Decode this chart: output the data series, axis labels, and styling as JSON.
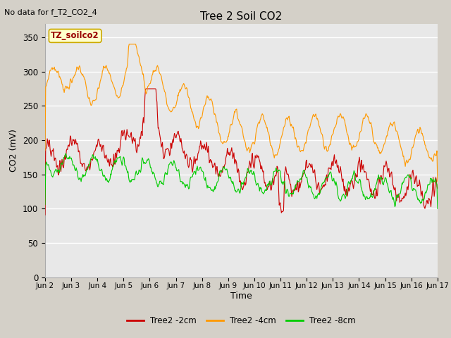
{
  "title": "Tree 2 Soil CO2",
  "subtitle": "No data for f_T2_CO2_4",
  "ylabel": "CO2 (mV)",
  "xlabel": "Time",
  "ylim": [
    0,
    370
  ],
  "yticks": [
    0,
    50,
    100,
    150,
    200,
    250,
    300,
    350
  ],
  "fig_bg": "#d4d0c8",
  "plot_bg": "#e8e8e8",
  "legend_label_box": "TZ_soilco2",
  "legend_box_facecolor": "#ffffcc",
  "legend_box_edgecolor": "#ccaa00",
  "series": [
    "Tree2 -2cm",
    "Tree2 -4cm",
    "Tree2 -8cm"
  ],
  "colors": [
    "#cc0000",
    "#ff9900",
    "#00cc00"
  ],
  "xtick_labels": [
    "Jun 2",
    "Jun 3",
    "Jun 4",
    "Jun 5",
    "Jun 6",
    "Jun 7",
    "Jun 8",
    "Jun 9",
    "Jun 10",
    "Jun 11",
    "Jun 12",
    "Jun 13",
    "Jun 14",
    "Jun 15",
    "Jun 16",
    "Jun 17"
  ],
  "line_width": 0.8,
  "n_days": 15,
  "pts_per_day": 48
}
